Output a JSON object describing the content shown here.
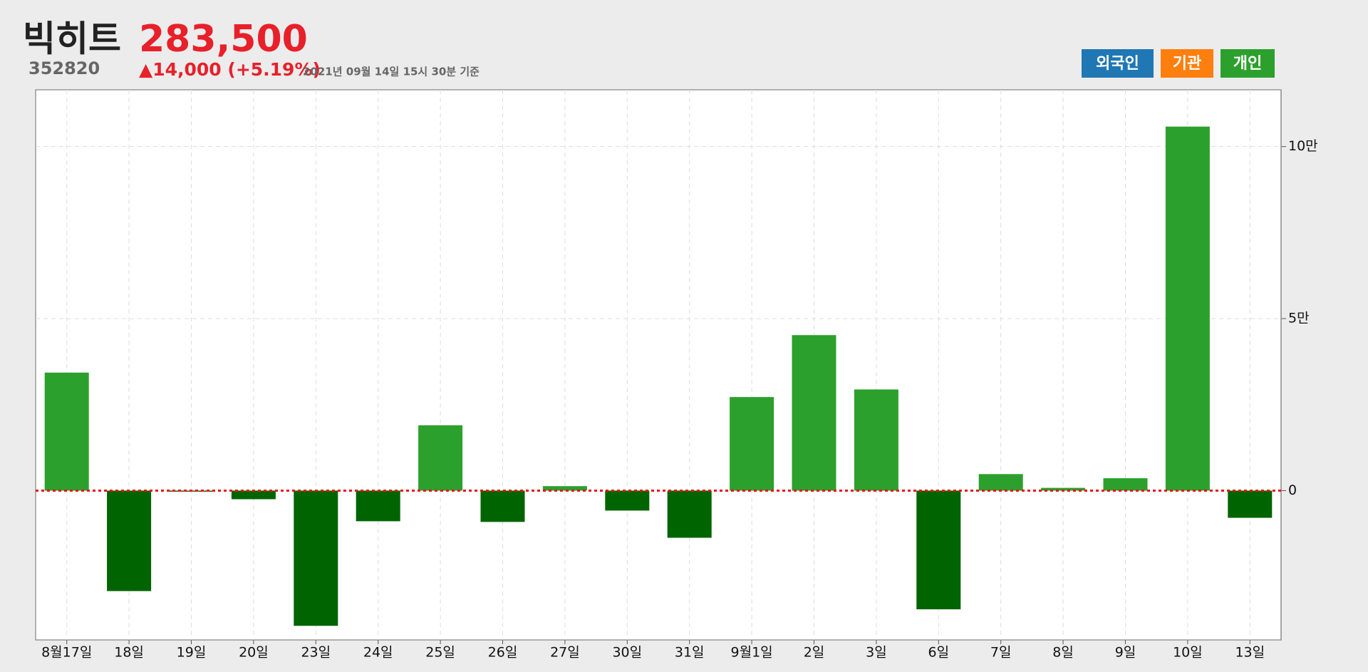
{
  "header": {
    "title": "빅히트",
    "code": "352820",
    "price": "283,500",
    "change": "▲14,000 (+5.19%)",
    "timestamp": "2021년 09월 14일 15시 30분 기준"
  },
  "buttons": [
    {
      "label": "외국인",
      "color": "#1f77b4"
    },
    {
      "label": "기관",
      "color": "#ff7f0e"
    },
    {
      "label": "개인",
      "color": "#2ca02c"
    }
  ],
  "chart_data": {
    "type": "bar",
    "categories": [
      "8월17일",
      "18일",
      "19일",
      "20일",
      "23일",
      "24일",
      "25일",
      "26일",
      "27일",
      "30일",
      "31일",
      "9월1일",
      "2일",
      "3일",
      "6일",
      "7일",
      "8일",
      "9일",
      "10일",
      "13일"
    ],
    "values": [
      34300,
      -29200,
      -300,
      -2500,
      -39300,
      -8900,
      19000,
      -9100,
      1300,
      -5800,
      -13700,
      27200,
      45200,
      29400,
      -34500,
      4800,
      800,
      3600,
      105800,
      -7900
    ],
    "positive_color": "#2ca02c",
    "negative_color": "#006400",
    "zero_line_color": "#e8101a",
    "ylim": [
      -43400,
      116500
    ],
    "yticks": [
      0,
      {
        "value": 50000,
        "label": "5만"
      },
      {
        "value": 100000,
        "label": "10만"
      }
    ],
    "grid": true
  }
}
